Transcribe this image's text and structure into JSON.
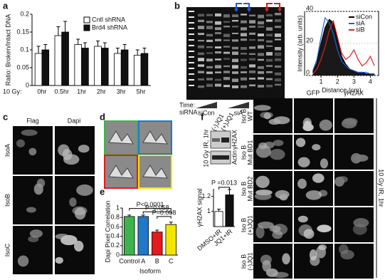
{
  "panel_labels": [
    "a",
    "b",
    "c",
    "d",
    "e",
    "f",
    "g"
  ],
  "chart_data": [
    {
      "type": "bar",
      "ylabel": "Ratio: Broken/Intact DNA",
      "xlabel": "10 Gy:",
      "categories": [
        "0hr",
        "0.5hr",
        "1hr",
        "2hr",
        "3hr",
        "5hr"
      ],
      "series": [
        {
          "name": "Cntl  shRNA",
          "color": "#ffffff",
          "values": [
            0.09,
            0.14,
            0.115,
            0.11,
            0.09,
            0.085
          ],
          "errors": [
            0.02,
            0.025,
            0.015,
            0.015,
            0.015,
            0.015
          ]
        },
        {
          "name": "Brd4 shRNA",
          "color": "#111111",
          "values": [
            0.1,
            0.15,
            0.105,
            0.105,
            0.1,
            0.09
          ],
          "errors": [
            0.015,
            0.03,
            0.015,
            0.015,
            0.015,
            0.015
          ]
        }
      ],
      "ylim": [
        0,
        0.2
      ],
      "yticks": [
        0,
        0.05,
        0.1,
        0.15,
        0.2
      ]
    },
    {
      "type": "line",
      "xlabel": "Distance (cm)",
      "ylabel": "Intensity (arb. units)",
      "x": [
        0.5,
        0.75,
        1,
        1.25,
        1.5,
        1.75,
        2,
        2.25,
        2.5,
        2.75,
        3,
        3.25,
        3.5,
        3.75,
        4,
        4.25
      ],
      "series": [
        {
          "name": "siCon",
          "color": "#000000",
          "values": [
            2,
            8,
            20,
            30,
            35,
            33,
            22,
            12,
            7,
            4,
            3,
            2,
            2,
            1,
            1,
            1
          ]
        },
        {
          "name": "siA",
          "color": "#1f5fd6",
          "values": [
            3,
            10,
            24,
            36,
            33,
            26,
            16,
            9,
            6,
            4,
            3,
            2,
            2,
            2,
            1,
            1
          ]
        },
        {
          "name": "siB",
          "color": "#e0201b",
          "values": [
            1,
            4,
            10,
            18,
            28,
            34,
            24,
            14,
            10,
            12,
            16,
            10,
            6,
            8,
            12,
            6
          ]
        }
      ],
      "xlim": [
        0,
        4.5
      ],
      "xticks": [
        1,
        2,
        3,
        4
      ],
      "ylim": [
        0,
        40
      ],
      "yticks": [
        0,
        20,
        40
      ]
    },
    {
      "type": "bar",
      "ylabel": "Dapi Pixel Correlation",
      "xlabel": "Isoform",
      "categories": [
        "Control",
        "A",
        "B",
        "C"
      ],
      "values": [
        0.82,
        0.82,
        0.49,
        0.65
      ],
      "errors": [
        0.03,
        0.03,
        0.04,
        0.05
      ],
      "colors": [
        "#3cb44b",
        "#1f78c8",
        "#e41a1c",
        "#f2e600"
      ],
      "ylim": [
        0,
        1.0
      ],
      "yticks": [
        0,
        0.2,
        0.4,
        0.6,
        0.8,
        1.0
      ],
      "annotations": [
        "P<0.0001",
        "P=0.058",
        "P=0.008"
      ]
    },
    {
      "type": "bar",
      "ylabel": "γH2AX signal",
      "categories": [
        "DMSO+IR",
        "JQ1+IR"
      ],
      "values": [
        1.0,
        1.22
      ],
      "errors": [
        0.03,
        0.07
      ],
      "colors": [
        "#ffffff",
        "#111111"
      ],
      "ylim": [
        0.8,
        1.3
      ],
      "yticks": [
        1.0,
        1.2
      ],
      "annotations": [
        "P =0.013"
      ]
    }
  ],
  "gel": {
    "time_label": "Time:",
    "sirna_label": "siRNA:",
    "lanes": [
      "siCon",
      "siA",
      "siB"
    ]
  },
  "microscopy_c": {
    "columns": [
      "Flag",
      "Dapi"
    ],
    "rows": [
      "IsoA",
      "IsoB",
      "IsoC"
    ]
  },
  "blot_f": {
    "conditions": [
      "(-)JQ1",
      "(+)JQ1"
    ],
    "treatment": "10 Gy IR, 1hr",
    "bands": [
      "γH2AX",
      "Actin"
    ]
  },
  "microscopy_g": {
    "columns": [
      "DNA",
      "GFP",
      "γH2AX"
    ],
    "rows": [
      [
        "Iso B",
        "WT"
      ],
      [
        "Iso B",
        "Mut BD1"
      ],
      [
        "Iso B",
        "Mut BD2"
      ],
      [
        "Iso B",
        "(+)JQ1"
      ],
      [
        "Iso B",
        "(-)JQ1"
      ]
    ],
    "treatment": "10 Gy IR, 1hr"
  }
}
